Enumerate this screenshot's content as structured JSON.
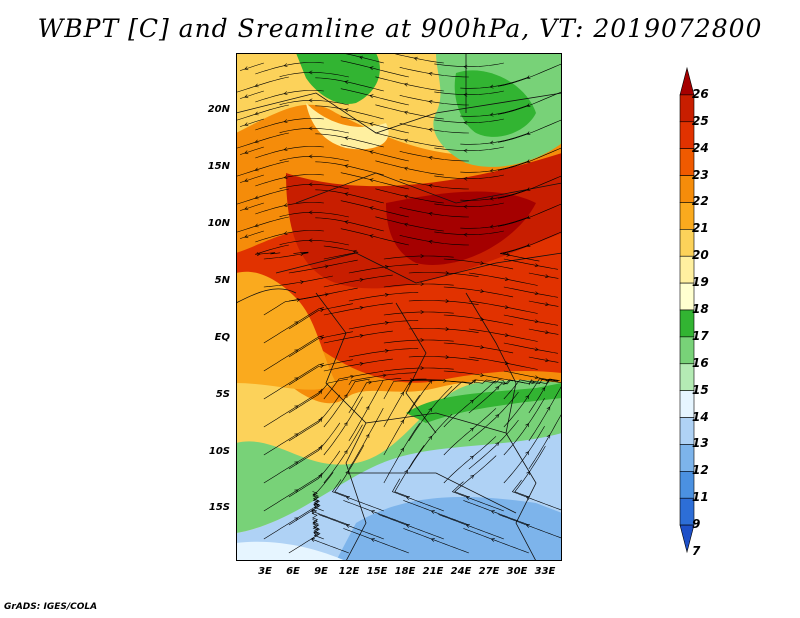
{
  "title": "WBPT [C] and Sreamline at 900hPa, VT: 2019072800",
  "credit": "GrADS: IGES/COLA",
  "lat_labels": [
    "20N",
    "15N",
    "10N",
    "5N",
    "EQ",
    "5S",
    "10S",
    "15S"
  ],
  "lon_labels": [
    "3E",
    "6E",
    "9E",
    "12E",
    "15E",
    "18E",
    "21E",
    "24E",
    "27E",
    "30E",
    "33E"
  ],
  "colorbar": {
    "labels": [
      "26",
      "25",
      "24",
      "23",
      "22",
      "21",
      "20",
      "19",
      "18",
      "17",
      "16",
      "15",
      "14",
      "13",
      "12",
      "11",
      "9",
      "7"
    ],
    "colors": [
      "#a50000",
      "#c81e00",
      "#e13200",
      "#f05a00",
      "#f58c0a",
      "#faaa1e",
      "#fcd25a",
      "#fff0a0",
      "#ffffd0",
      "#32b432",
      "#78d278",
      "#b4ebb4",
      "#e6f5ff",
      "#afd2f5",
      "#7db4eb",
      "#4b91e1",
      "#2d6ed7",
      "#1e50c8"
    ]
  }
}
